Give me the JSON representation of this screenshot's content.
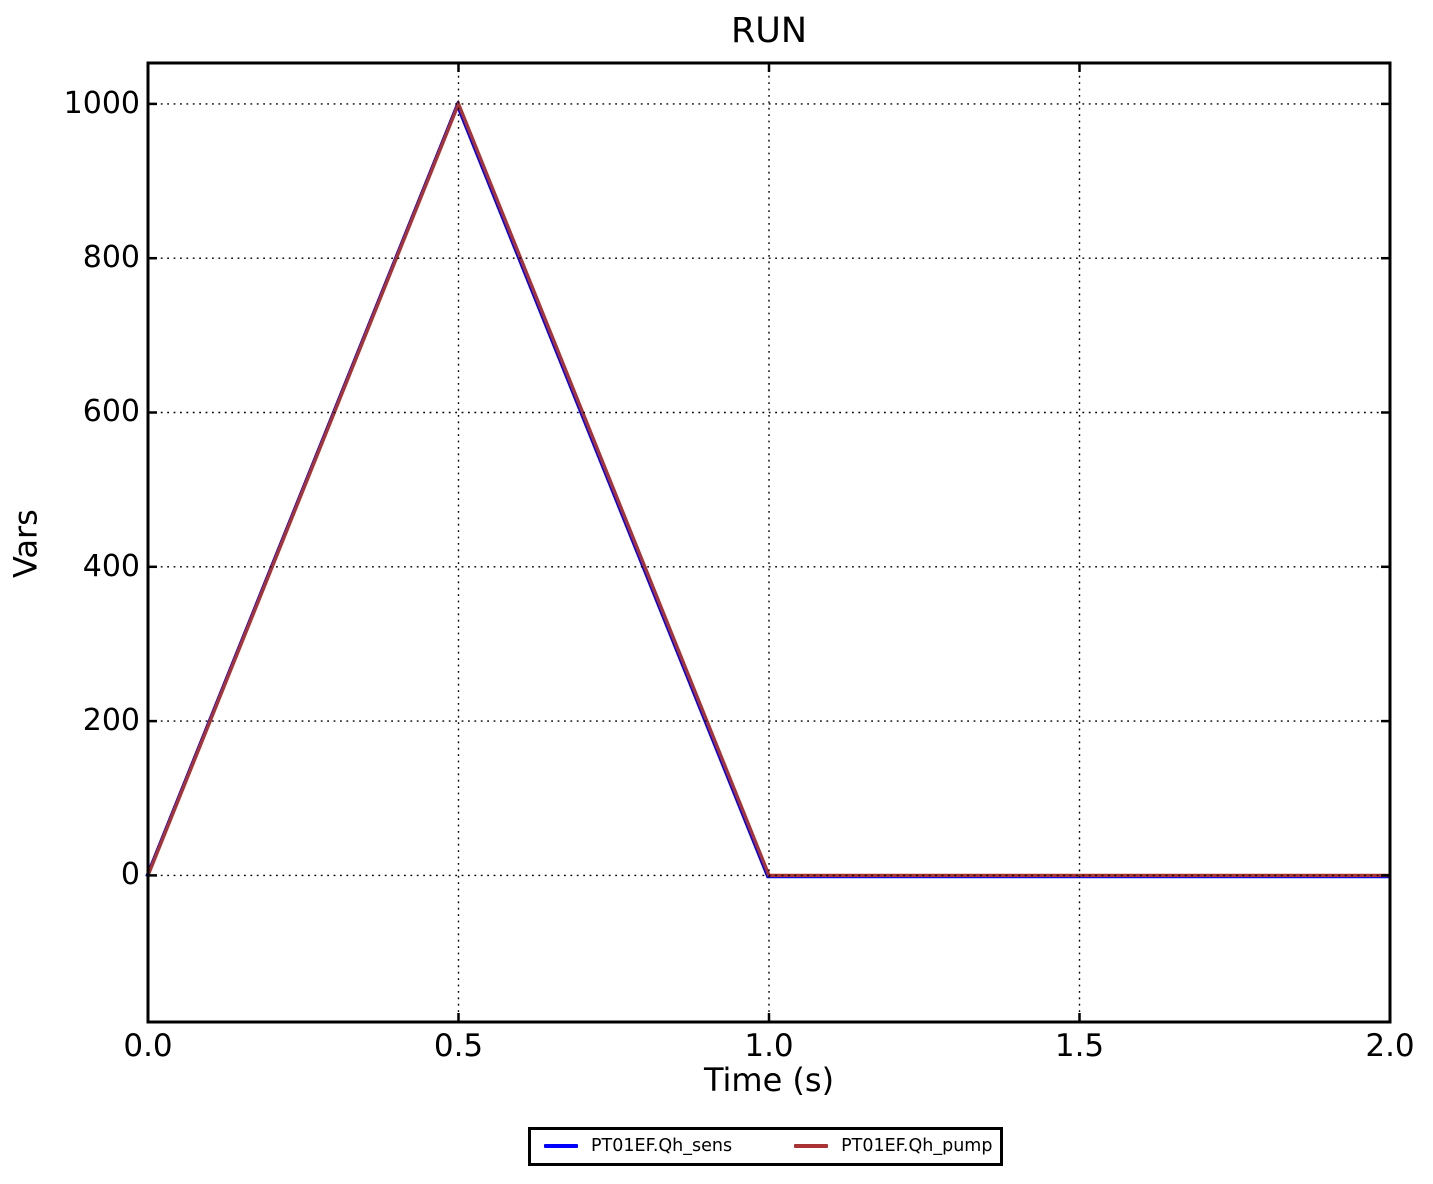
{
  "chart_data": {
    "type": "line",
    "title": "RUN",
    "xlabel": "Time (s)",
    "ylabel": "Vars",
    "xlim": [
      0,
      2
    ],
    "ylim": [
      -190,
      1053
    ],
    "xtick_values": [
      0,
      0.5,
      1,
      1.5,
      2
    ],
    "xtick_labels": [
      "0.0",
      "0.5",
      "1.0",
      "1.5",
      "2.0"
    ],
    "ytick_values": [
      0,
      200,
      400,
      600,
      800,
      1000
    ],
    "ytick_labels": [
      "0",
      "200",
      "400",
      "600",
      "800",
      "1000"
    ],
    "grid": "dotted both axes",
    "legend_position": "lower center, outside plot",
    "series": [
      {
        "name": "PT01EF.Qh_sens",
        "color": "#0000ff",
        "x": [
          0,
          0.5,
          1,
          2
        ],
        "y": [
          0,
          1000,
          0,
          0
        ]
      },
      {
        "name": "PT01EF.Qh_pump",
        "color": "#a93232",
        "x": [
          0,
          0.5,
          1,
          2
        ],
        "y": [
          0,
          1000,
          0,
          0
        ]
      }
    ],
    "colors": {
      "background": "#ffffff",
      "axes": "#000000",
      "grid": "#000000",
      "text": "#000000"
    }
  }
}
